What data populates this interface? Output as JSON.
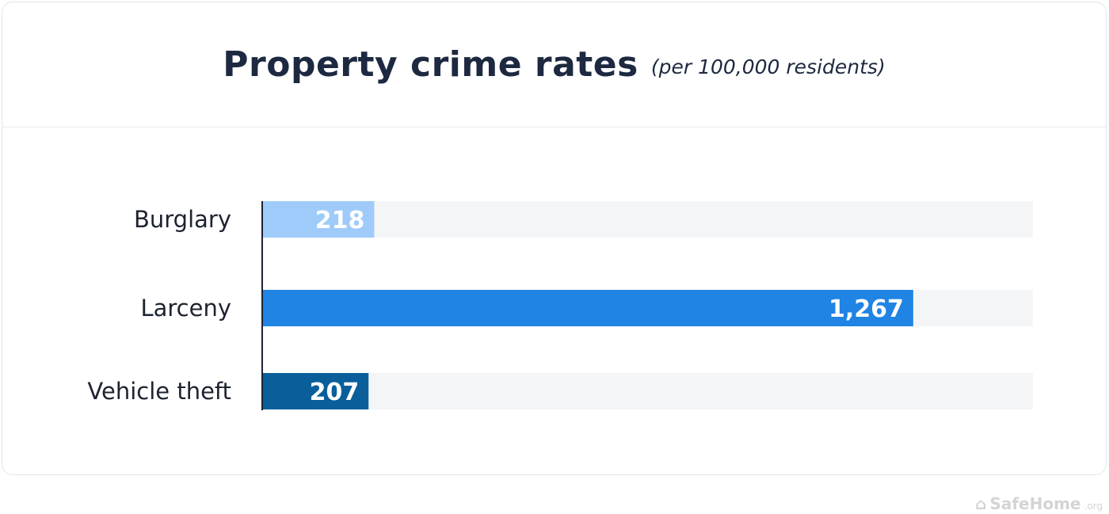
{
  "chart_data": {
    "type": "bar",
    "orientation": "horizontal",
    "title": "Property crime rates",
    "subtitle": "(per 100,000 residents)",
    "categories": [
      "Burglary",
      "Larceny",
      "Vehicle theft"
    ],
    "values": [
      218,
      1267,
      207
    ],
    "value_labels": [
      "218",
      "1,267",
      "207"
    ],
    "colors": [
      "#9ecbfa",
      "#1f84e3",
      "#0a5f9b"
    ],
    "track_color": "#f4f5f7",
    "xlim": [
      0,
      1500
    ],
    "grid": false
  },
  "branding": {
    "name": "SafeHome",
    "suffix": ".org"
  }
}
